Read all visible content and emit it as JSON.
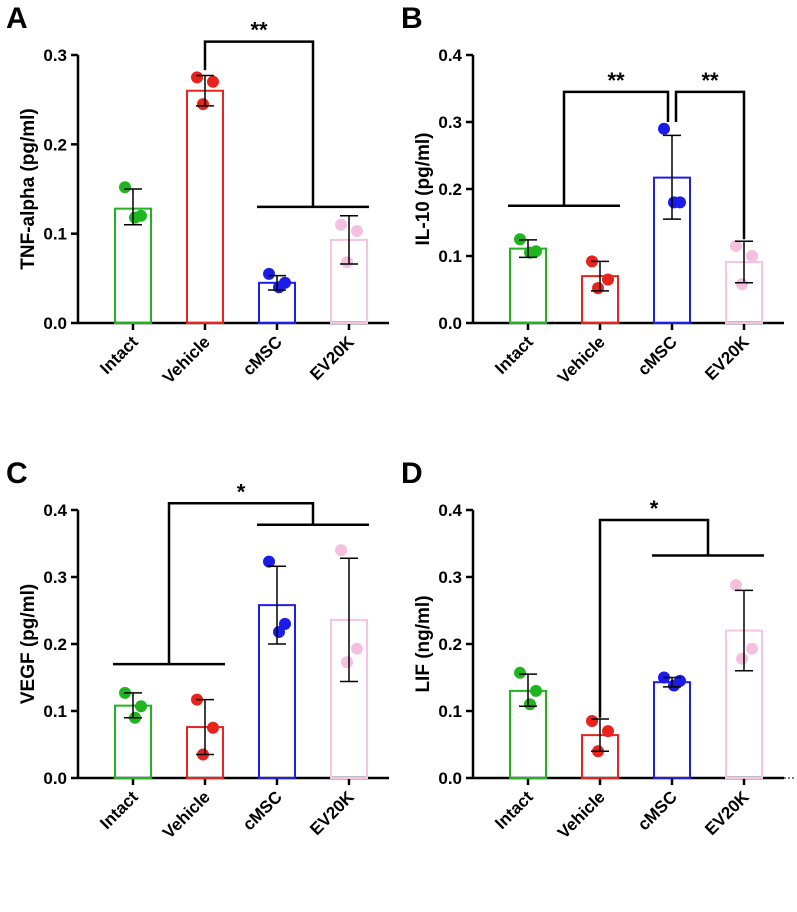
{
  "chart_data": [
    {
      "panel": "A",
      "type": "bar",
      "ylabel": "TNF-alpha (pg/ml)",
      "ylim": [
        0,
        0.3
      ],
      "yticks": [
        "0.0",
        "0.1",
        "0.2",
        "0.3"
      ],
      "categories": [
        "Intact",
        "Vehicle",
        "cMSC",
        "EV20K"
      ],
      "means": [
        0.128,
        0.26,
        0.045,
        0.093
      ],
      "errors": [
        [
          0.11,
          0.15
        ],
        [
          0.243,
          0.277
        ],
        [
          0.037,
          0.053
        ],
        [
          0.066,
          0.12
        ]
      ],
      "points": [
        [
          0.152,
          0.12,
          0.118
        ],
        [
          0.275,
          0.27,
          0.245
        ],
        [
          0.055,
          0.045,
          0.04
        ],
        [
          0.11,
          0.103,
          0.068
        ]
      ],
      "brackets": [
        {
          "label": "**",
          "a": [
            1
          ],
          "a_y": 0.283,
          "b": [
            2,
            3
          ],
          "b_y": 0.13,
          "top": 0.315
        }
      ]
    },
    {
      "panel": "B",
      "type": "bar",
      "ylabel": "IL-10 (pg/ml)",
      "ylim": [
        0,
        0.4
      ],
      "yticks": [
        "0.0",
        "0.1",
        "0.2",
        "0.3",
        "0.4"
      ],
      "categories": [
        "Intact",
        "Vehicle",
        "cMSC",
        "EV20K"
      ],
      "means": [
        0.111,
        0.07,
        0.217,
        0.091
      ],
      "errors": [
        [
          0.098,
          0.124
        ],
        [
          0.048,
          0.092
        ],
        [
          0.155,
          0.28
        ],
        [
          0.06,
          0.122
        ]
      ],
      "points": [
        [
          0.125,
          0.107,
          0.105
        ],
        [
          0.092,
          0.065,
          0.052
        ],
        [
          0.29,
          0.18,
          0.18
        ],
        [
          0.115,
          0.1,
          0.058
        ]
      ],
      "brackets": [
        {
          "label": "**",
          "a": [
            0,
            1
          ],
          "a_y": 0.175,
          "b": [
            2
          ],
          "b_y": 0.3,
          "top": 0.345
        },
        {
          "label": "**",
          "a": [
            2
          ],
          "a_y": 0.3,
          "b": [
            3
          ],
          "b_y": 0.125,
          "top": 0.345
        }
      ]
    },
    {
      "panel": "C",
      "type": "bar",
      "ylabel": "VEGF (pg/ml)",
      "ylim": [
        0,
        0.4
      ],
      "yticks": [
        "0.0",
        "0.1",
        "0.2",
        "0.3",
        "0.4"
      ],
      "categories": [
        "Intact",
        "Vehicle",
        "cMSC",
        "EV20K"
      ],
      "means": [
        0.108,
        0.076,
        0.258,
        0.236
      ],
      "errors": [
        [
          0.09,
          0.127
        ],
        [
          0.035,
          0.117
        ],
        [
          0.2,
          0.316
        ],
        [
          0.144,
          0.328
        ]
      ],
      "points": [
        [
          0.127,
          0.107,
          0.09
        ],
        [
          0.117,
          0.075,
          0.035
        ],
        [
          0.323,
          0.23,
          0.218
        ],
        [
          0.34,
          0.193,
          0.173
        ]
      ],
      "brackets": [
        {
          "label": "*",
          "a": [
            0,
            1
          ],
          "a_y": 0.17,
          "b": [
            2,
            3
          ],
          "b_y": 0.378,
          "top": 0.41
        }
      ]
    },
    {
      "panel": "D",
      "type": "bar",
      "ylabel": "LIF (ng/ml)",
      "ylim": [
        0,
        0.4
      ],
      "yticks": [
        "0.0",
        "0.1",
        "0.2",
        "0.3",
        "0.4"
      ],
      "categories": [
        "Intact",
        "Vehicle",
        "cMSC",
        "EV20K"
      ],
      "means": [
        0.13,
        0.064,
        0.143,
        0.22
      ],
      "errors": [
        [
          0.107,
          0.155
        ],
        [
          0.04,
          0.088
        ],
        [
          0.136,
          0.15
        ],
        [
          0.16,
          0.28
        ]
      ],
      "points": [
        [
          0.157,
          0.13,
          0.11
        ],
        [
          0.085,
          0.07,
          0.04
        ],
        [
          0.15,
          0.145,
          0.138
        ],
        [
          0.288,
          0.193,
          0.178
        ]
      ],
      "brackets": [
        {
          "label": "*",
          "a": [
            1
          ],
          "a_y": 0.09,
          "b": [
            2,
            3
          ],
          "b_y": 0.332,
          "top": 0.385
        }
      ]
    }
  ],
  "colors": {
    "bars": [
      "#22b322",
      "#e8241e",
      "#1e1ee6",
      "#f5c4e4"
    ],
    "points": [
      "#1fb51f",
      "#e8221c",
      "#1c1ce8",
      "#f5bfe0"
    ]
  }
}
